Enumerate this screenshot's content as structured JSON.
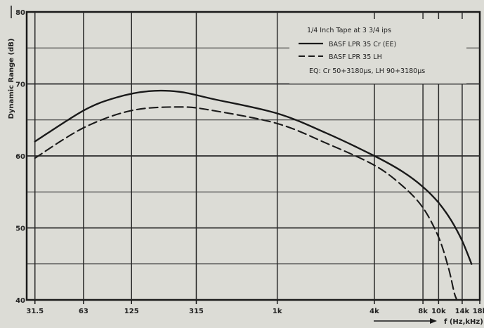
{
  "chart_data": {
    "type": "line",
    "title": "",
    "ylabel": "Dynamic Range (dB)",
    "xlabel": "f (Hz,kHz)",
    "x_scale": "log",
    "xlim": [
      28,
      18000
    ],
    "ylim": [
      40,
      80
    ],
    "grid": true,
    "legend_position": "top-right",
    "x_ticks": [
      {
        "value": 31.5,
        "label": "31.5"
      },
      {
        "value": 63,
        "label": "63"
      },
      {
        "value": 125,
        "label": "125"
      },
      {
        "value": 315,
        "label": "315"
      },
      {
        "value": 1000,
        "label": "1k"
      },
      {
        "value": 4000,
        "label": "4k"
      },
      {
        "value": 8000,
        "label": "8k"
      },
      {
        "value": 10000,
        "label": "10k"
      },
      {
        "value": 14000,
        "label": "14k"
      },
      {
        "value": 18000,
        "label": "18k"
      }
    ],
    "y_ticks": [
      {
        "value": 40,
        "label": "40"
      },
      {
        "value": 50,
        "label": "50"
      },
      {
        "value": 60,
        "label": "60"
      },
      {
        "value": 70,
        "label": "70"
      },
      {
        "value": 80,
        "label": "80"
      }
    ],
    "legend_header": "1/4 Inch Tape at 3 3/4 ips",
    "legend_note": "EQ: Cr 50+3180µs, LH 90+3180µs",
    "series": [
      {
        "name": "BASF LPR 35 Cr (EE)",
        "style": "solid",
        "x": [
          31.5,
          63,
          100,
          160,
          250,
          400,
          1000,
          2000,
          4000,
          6000,
          8000,
          10000,
          12000,
          14000,
          16000
        ],
        "y": [
          62,
          66.3,
          68.1,
          69,
          68.9,
          67.9,
          65.9,
          63.2,
          60,
          57.8,
          55.7,
          53.5,
          51,
          48.2,
          45
        ]
      },
      {
        "name": "BASF LPR 35 LH",
        "style": "dashed",
        "x": [
          31.5,
          63,
          125,
          250,
          400,
          1000,
          2000,
          4000,
          6000,
          8000,
          10000,
          11500,
          12500,
          13000
        ],
        "y": [
          59.7,
          63.9,
          66.3,
          66.8,
          66.3,
          64.5,
          61.8,
          58.7,
          55.8,
          52.8,
          48.7,
          44.5,
          41,
          40
        ]
      }
    ],
    "colors": {
      "background": "#dcdcd6",
      "ink": "#1a1a1a",
      "grid": "#2a2a2a"
    }
  }
}
